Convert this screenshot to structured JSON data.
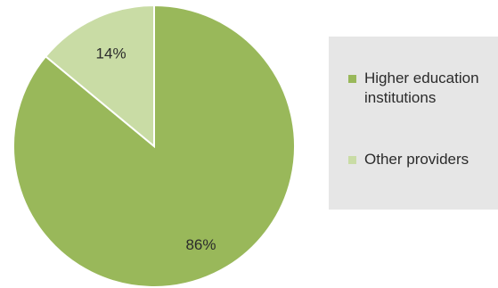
{
  "chart_data": {
    "type": "pie",
    "categories": [
      "Higher education institutions",
      "Other providers"
    ],
    "values": [
      86,
      14
    ],
    "data_labels": [
      "86%",
      "14%"
    ],
    "colors": [
      "#99b85a",
      "#c9dca5"
    ],
    "legend_position": "right",
    "title": ""
  },
  "legend": {
    "items": [
      {
        "label": "Higher education institutions",
        "color": "#99b85a"
      },
      {
        "label": "Other providers",
        "color": "#c9dca5"
      }
    ]
  }
}
